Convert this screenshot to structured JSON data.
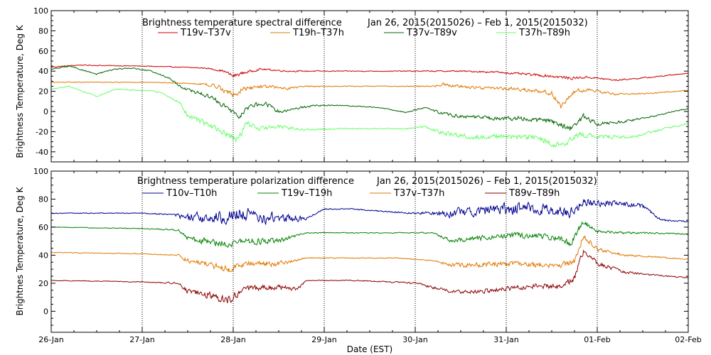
{
  "chart_data": [
    {
      "type": "line",
      "title": "Brightness temperature spectral difference",
      "date_range": "Jan 26, 2015(2015026) – Feb  1, 2015(2015032)",
      "ylabel": "Brightness Temperature, Deg K",
      "ylim": [
        -50,
        100
      ],
      "yticks": [
        "-40",
        "-20",
        "0",
        "20",
        "40",
        "60",
        "80",
        "100"
      ],
      "ytick_values": [
        -40,
        -20,
        0,
        20,
        40,
        60,
        80,
        100
      ],
      "xlim": [
        0,
        7
      ],
      "day_markers": [
        1,
        2,
        3,
        4,
        5,
        6
      ],
      "series": [
        {
          "name": "T19v–T37v",
          "color": "#cc0000",
          "x": [
            0,
            0.3,
            1,
            1.4,
            1.7,
            1.9,
            2.0,
            2.1,
            2.3,
            2.6,
            2.8,
            3.2,
            3.8,
            4.2,
            4.5,
            4.9,
            5.2,
            5.5,
            5.7,
            5.9,
            6.2,
            6.6,
            7.0
          ],
          "values": [
            44,
            46,
            45,
            44,
            43,
            40,
            35,
            38,
            42,
            40,
            40,
            40,
            40,
            40,
            40,
            39,
            37,
            35,
            33,
            34,
            31,
            34,
            38
          ],
          "noise": [
            0.6,
            0.6,
            0.5,
            0.6,
            0.8,
            1.5,
            2.5,
            2,
            1.2,
            1,
            0.8,
            0.6,
            0.6,
            0.8,
            1,
            1.2,
            1.5,
            2,
            2,
            1.5,
            1,
            0.8,
            0.6
          ]
        },
        {
          "name": "T19h–T37h",
          "color": "#e07800",
          "x": [
            0,
            1,
            1.5,
            1.7,
            1.85,
            2.0,
            2.1,
            2.3,
            2.6,
            2.8,
            3.2,
            3.8,
            4.2,
            4.3,
            4.6,
            5.0,
            5.3,
            5.5,
            5.6,
            5.75,
            5.9,
            6.2,
            6.6,
            7.0
          ],
          "values": [
            29,
            29,
            28,
            27,
            24,
            16,
            22,
            25,
            23,
            25,
            25,
            25,
            25,
            27,
            24,
            23,
            21,
            18,
            5,
            20,
            22,
            17,
            18,
            21
          ],
          "noise": [
            0.4,
            0.4,
            0.6,
            1.5,
            3,
            4,
            3,
            2.5,
            2,
            1,
            0.6,
            0.6,
            1,
            2,
            2,
            2.2,
            2.5,
            3,
            3,
            3,
            2,
            1.2,
            0.8,
            0.6
          ]
        },
        {
          "name": "T37v–T89v",
          "color": "#006400",
          "x": [
            0,
            0.2,
            0.5,
            0.7,
            0.9,
            1.1,
            1.3,
            1.45,
            1.6,
            1.8,
            1.95,
            2.05,
            2.2,
            2.35,
            2.5,
            2.7,
            2.9,
            3.2,
            3.6,
            3.9,
            4.1,
            4.3,
            4.5,
            4.9,
            5.2,
            5.5,
            5.7,
            5.85,
            6.0,
            6.3,
            6.6,
            7.0
          ],
          "values": [
            42,
            45,
            37,
            42,
            43,
            40,
            33,
            23,
            19,
            12,
            2,
            -5,
            6,
            8,
            0,
            3,
            6,
            6,
            4,
            -1,
            4,
            -2,
            -5,
            -7,
            -7,
            -10,
            -18,
            -5,
            -12,
            -10,
            -5,
            3
          ],
          "noise": [
            0.6,
            0.8,
            0.8,
            0.8,
            0.6,
            0.8,
            1,
            2,
            2.5,
            3,
            3.5,
            4,
            3.5,
            3,
            2.5,
            1.5,
            1,
            0.6,
            0.6,
            0.6,
            1,
            2,
            2.5,
            2.5,
            3,
            3.5,
            3.5,
            3.5,
            2.5,
            1.5,
            1,
            0.8
          ]
        },
        {
          "name": "T37h–T89h",
          "color": "#66ff66",
          "x": [
            0,
            0.2,
            0.5,
            0.7,
            1.0,
            1.2,
            1.4,
            1.5,
            1.7,
            1.95,
            2.05,
            2.15,
            2.3,
            2.5,
            2.8,
            3.2,
            3.6,
            3.9,
            4.1,
            4.3,
            4.6,
            5.0,
            5.3,
            5.6,
            5.8,
            6.0,
            6.4,
            6.7,
            7.0
          ],
          "values": [
            22,
            25,
            15,
            22,
            21,
            19,
            10,
            -4,
            -12,
            -23,
            -28,
            -12,
            -17,
            -15,
            -18,
            -17,
            -17,
            -17,
            -15,
            -22,
            -25,
            -25,
            -25,
            -35,
            -22,
            -25,
            -25,
            -18,
            -12
          ],
          "noise": [
            0.6,
            0.6,
            0.8,
            0.8,
            0.6,
            0.8,
            2,
            3,
            3.5,
            4,
            4.5,
            4,
            3,
            2.5,
            1.5,
            0.8,
            0.6,
            0.8,
            1.5,
            3,
            3.5,
            3.5,
            4,
            4.5,
            4,
            3,
            2,
            1.5,
            1
          ]
        }
      ]
    },
    {
      "type": "line",
      "title": "Brightness temperature polarization difference",
      "date_range": "Jan 26, 2015(2015026) – Feb  1, 2015(2015032)",
      "ylabel": "Brightnes Temperature, Deg K",
      "xlabel": "Date (EST)",
      "ylim": [
        -15,
        100
      ],
      "yticks": [
        "0",
        "20",
        "40",
        "60",
        "80",
        "100"
      ],
      "ytick_values": [
        0,
        20,
        40,
        60,
        80,
        100
      ],
      "xlim": [
        0,
        7
      ],
      "xticks": [
        "26-Jan",
        "27-Jan",
        "28-Jan",
        "29-Jan",
        "30-Jan",
        "31-Jan",
        "01-Feb",
        "02-Feb"
      ],
      "xtick_values": [
        0,
        1,
        2,
        3,
        4,
        5,
        6,
        7
      ],
      "day_markers": [
        1,
        2,
        3,
        4,
        5,
        6
      ],
      "series": [
        {
          "name": "T10v–T10h",
          "color": "#000090",
          "x": [
            0,
            1.0,
            1.35,
            1.5,
            1.7,
            1.9,
            2.1,
            2.3,
            2.5,
            2.7,
            2.8,
            3.0,
            3.3,
            3.7,
            4.0,
            4.2,
            4.4,
            4.7,
            5.0,
            5.2,
            5.5,
            5.7,
            5.85,
            6.0,
            6.3,
            6.5,
            6.7,
            7.0
          ],
          "values": [
            70,
            70,
            69,
            66,
            67,
            67,
            70,
            66,
            67,
            66,
            66,
            73,
            73,
            71,
            70,
            70,
            70,
            72,
            73,
            74,
            72,
            70,
            78,
            77,
            77,
            75,
            65,
            64
          ],
          "noise": [
            0.4,
            0.4,
            0.8,
            5,
            5,
            6,
            6.5,
            6,
            5,
            4,
            1,
            0.6,
            0.5,
            0.6,
            0.8,
            2,
            4,
            5,
            5.5,
            5.5,
            5,
            5,
            4,
            3,
            3,
            2,
            1,
            0.6
          ]
        },
        {
          "name": "T19v–T19h",
          "color": "#008000",
          "x": [
            0,
            1.0,
            1.4,
            1.5,
            1.7,
            1.95,
            2.1,
            2.3,
            2.5,
            2.8,
            3.2,
            3.8,
            4.2,
            4.4,
            4.7,
            5.0,
            5.3,
            5.6,
            5.7,
            5.85,
            6.0,
            6.3,
            6.6,
            7.0
          ],
          "values": [
            60,
            59,
            58,
            52,
            50,
            48,
            50,
            50,
            50,
            56,
            56,
            56,
            56,
            50,
            52,
            54,
            54,
            52,
            48,
            64,
            57,
            56,
            56,
            55
          ],
          "noise": [
            0.3,
            0.4,
            0.8,
            2.5,
            3,
            3,
            3,
            3,
            2.5,
            0.5,
            0.4,
            0.4,
            0.6,
            2,
            2.5,
            2.5,
            2.5,
            2.5,
            3,
            3,
            1.5,
            1,
            0.8,
            0.5
          ]
        },
        {
          "name": "T37v–T37h",
          "color": "#e07800",
          "x": [
            0,
            1.0,
            1.4,
            1.5,
            1.7,
            1.95,
            2.1,
            2.3,
            2.5,
            2.8,
            3.2,
            3.8,
            4.2,
            4.4,
            4.7,
            5.0,
            5.3,
            5.6,
            5.75,
            5.85,
            6.0,
            6.3,
            6.6,
            7.0
          ],
          "values": [
            42,
            41,
            40,
            36,
            34,
            30,
            34,
            34,
            34,
            38,
            38,
            38,
            36,
            33,
            33,
            34,
            33,
            33,
            35,
            54,
            44,
            40,
            39,
            37
          ],
          "noise": [
            0.3,
            0.4,
            0.8,
            2.5,
            3,
            3.5,
            3,
            3,
            2.5,
            0.5,
            0.4,
            0.4,
            0.6,
            2,
            2.5,
            2.5,
            2.5,
            2.5,
            3,
            3,
            2,
            1.2,
            0.8,
            0.5
          ]
        },
        {
          "name": "T89v–T89h",
          "color": "#8b0000",
          "x": [
            0,
            1.0,
            1.4,
            1.5,
            1.7,
            1.95,
            2.1,
            2.3,
            2.5,
            2.7,
            2.8,
            3.0,
            3.3,
            3.7,
            4.0,
            4.2,
            4.4,
            4.7,
            5.0,
            5.3,
            5.6,
            5.75,
            5.85,
            6.0,
            6.3,
            6.6,
            7.0
          ],
          "values": [
            22,
            21,
            20,
            14,
            12,
            8,
            15,
            17,
            17,
            16,
            22,
            22,
            22,
            21,
            20,
            17,
            14,
            14,
            16,
            18,
            18,
            24,
            44,
            34,
            28,
            26,
            24
          ],
          "noise": [
            0.3,
            0.4,
            0.8,
            2.5,
            3,
            4,
            3,
            3,
            2.5,
            2.5,
            0.6,
            0.4,
            0.4,
            0.6,
            0.8,
            1.5,
            1.5,
            2,
            2.5,
            2.5,
            2.5,
            3,
            3,
            2,
            1.2,
            0.8,
            0.5
          ]
        }
      ]
    }
  ]
}
